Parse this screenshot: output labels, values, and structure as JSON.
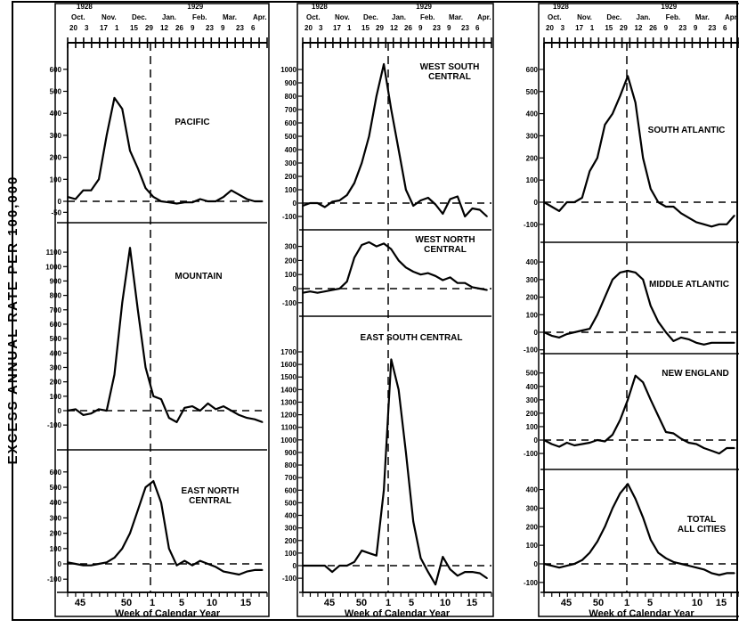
{
  "figure": {
    "ylabel": "EXCESS ANNUAL RATE PER 100,000",
    "xlabel": "Week of Calendar Year",
    "x_tick_labels": [
      "45",
      "50",
      "1",
      "5",
      "10",
      "15"
    ],
    "months_top": [
      "Oct.",
      "Nov.",
      "Dec.",
      "Jan.",
      "Feb.",
      "Mar.",
      "Apr."
    ],
    "days_top": [
      "20",
      "3",
      "17",
      "1",
      "15",
      "29",
      "12",
      "26",
      "9",
      "23",
      "9",
      "23",
      "6"
    ],
    "years_top": [
      "1928",
      "1929"
    ]
  },
  "chart_data": [
    {
      "type": "line",
      "title": "PACIFIC",
      "column": 1,
      "x": [
        42,
        43,
        44,
        45,
        46,
        47,
        48,
        49,
        50,
        51,
        52,
        1,
        2,
        3,
        4,
        5,
        6,
        7,
        8,
        9,
        10,
        11,
        12,
        13,
        14,
        15
      ],
      "y": [
        20,
        10,
        50,
        50,
        100,
        300,
        470,
        420,
        230,
        150,
        60,
        20,
        0,
        -5,
        -10,
        -5,
        -5,
        10,
        0,
        0,
        20,
        50,
        30,
        10,
        0,
        0
      ],
      "yticks": [
        "600",
        "500",
        "400",
        "300",
        "200",
        "100",
        "0",
        "-50"
      ],
      "ylim": [
        -60,
        650
      ]
    },
    {
      "type": "line",
      "title": "MOUNTAIN",
      "column": 1,
      "x": [
        42,
        43,
        44,
        45,
        46,
        47,
        48,
        49,
        50,
        51,
        52,
        1,
        2,
        3,
        4,
        5,
        6,
        7,
        8,
        9,
        10,
        11,
        12,
        13,
        14,
        15
      ],
      "y": [
        0,
        10,
        -30,
        -20,
        10,
        0,
        250,
        750,
        1130,
        700,
        300,
        100,
        80,
        -50,
        -80,
        20,
        30,
        0,
        50,
        10,
        30,
        0,
        -30,
        -50,
        -60,
        -80
      ],
      "yticks": [
        "1100",
        "1000",
        "900",
        "800",
        "700",
        "600",
        "500",
        "400",
        "300",
        "200",
        "100",
        "0",
        "-100"
      ],
      "ylim": [
        -150,
        1200
      ]
    },
    {
      "type": "line",
      "title": "EAST NORTH CENTRAL",
      "column": 1,
      "x": [
        42,
        43,
        44,
        45,
        46,
        47,
        48,
        49,
        50,
        51,
        52,
        1,
        2,
        3,
        4,
        5,
        6,
        7,
        8,
        9,
        10,
        11,
        12,
        13,
        14,
        15
      ],
      "y": [
        10,
        0,
        -10,
        -10,
        0,
        10,
        40,
        100,
        200,
        350,
        500,
        540,
        400,
        100,
        -10,
        20,
        -10,
        20,
        0,
        -20,
        -50,
        -60,
        -70,
        -50,
        -40,
        -40
      ],
      "yticks": [
        "600",
        "500",
        "400",
        "300",
        "200",
        "100",
        "0",
        "-100"
      ],
      "ylim": [
        -150,
        700
      ]
    },
    {
      "type": "line",
      "title": "WEST SOUTH CENTRAL",
      "column": 2,
      "x": [
        42,
        43,
        44,
        45,
        46,
        47,
        48,
        49,
        50,
        51,
        52,
        1,
        2,
        3,
        4,
        5,
        6,
        7,
        8,
        9,
        10,
        11,
        12,
        13,
        14,
        15
      ],
      "y": [
        -20,
        0,
        0,
        -30,
        10,
        20,
        60,
        150,
        300,
        500,
        800,
        1040,
        700,
        400,
        100,
        -20,
        20,
        40,
        -10,
        -80,
        30,
        50,
        -100,
        -40,
        -50,
        -100
      ],
      "yticks": [
        "1000",
        "900",
        "800",
        "700",
        "600",
        "500",
        "400",
        "300",
        "200",
        "100",
        "0",
        "-100"
      ],
      "ylim": [
        -150,
        1100
      ]
    },
    {
      "type": "line",
      "title": "WEST NORTH CENTRAL",
      "column": 2,
      "x": [
        42,
        43,
        44,
        45,
        46,
        47,
        48,
        49,
        50,
        51,
        52,
        1,
        2,
        3,
        4,
        5,
        6,
        7,
        8,
        9,
        10,
        11,
        12,
        13,
        14,
        15
      ],
      "y": [
        -30,
        -20,
        -30,
        -20,
        -10,
        0,
        50,
        220,
        310,
        330,
        300,
        320,
        280,
        200,
        150,
        120,
        100,
        110,
        90,
        60,
        80,
        40,
        40,
        10,
        0,
        -10
      ],
      "yticks": [
        "300",
        "200",
        "100",
        "0",
        "-100"
      ],
      "ylim": [
        -120,
        350
      ]
    },
    {
      "type": "line",
      "title": "EAST SOUTH CENTRAL",
      "column": 2,
      "x": [
        42,
        43,
        44,
        45,
        46,
        47,
        48,
        49,
        50,
        51,
        52,
        1,
        2,
        3,
        4,
        5,
        6,
        7,
        8,
        9,
        10,
        11,
        12,
        13,
        14,
        15
      ],
      "y": [
        0,
        0,
        0,
        0,
        -50,
        0,
        0,
        30,
        120,
        100,
        80,
        600,
        1640,
        1400,
        900,
        350,
        60,
        -50,
        -150,
        70,
        -30,
        -80,
        -50,
        -50,
        -60,
        -100
      ],
      "yticks": [
        "1700",
        "1600",
        "1500",
        "1400",
        "1300",
        "1200",
        "1100",
        "1000",
        "900",
        "800",
        "700",
        "600",
        "500",
        "400",
        "300",
        "200",
        "100",
        "0",
        "-100"
      ],
      "ylim": [
        -130,
        1800
      ]
    },
    {
      "type": "line",
      "title": "SOUTH ATLANTIC",
      "column": 3,
      "x": [
        42,
        43,
        44,
        45,
        46,
        47,
        48,
        49,
        50,
        51,
        52,
        1,
        2,
        3,
        4,
        5,
        6,
        7,
        8,
        9,
        10,
        11,
        12,
        13,
        14,
        15
      ],
      "y": [
        0,
        -20,
        -40,
        0,
        0,
        20,
        140,
        200,
        350,
        400,
        480,
        570,
        450,
        200,
        60,
        0,
        -20,
        -20,
        -50,
        -70,
        -90,
        -100,
        -110,
        -100,
        -100,
        -60
      ],
      "yticks": [
        "600",
        "500",
        "400",
        "300",
        "200",
        "100",
        "0",
        "-100"
      ],
      "ylim": [
        -130,
        650
      ]
    },
    {
      "type": "line",
      "title": "MIDDLE ATLANTIC",
      "column": 3,
      "x": [
        42,
        43,
        44,
        45,
        46,
        47,
        48,
        49,
        50,
        51,
        52,
        1,
        2,
        3,
        4,
        5,
        6,
        7,
        8,
        9,
        10,
        11,
        12,
        13,
        14,
        15
      ],
      "y": [
        0,
        -20,
        -30,
        -10,
        0,
        10,
        20,
        100,
        200,
        300,
        340,
        350,
        340,
        300,
        150,
        60,
        0,
        -50,
        -30,
        -40,
        -60,
        -70,
        -60,
        -60,
        -60,
        -60
      ],
      "yticks": [
        "400",
        "300",
        "200",
        "100",
        "0",
        "-100"
      ],
      "ylim": [
        -120,
        450
      ]
    },
    {
      "type": "line",
      "title": "NEW ENGLAND",
      "column": 3,
      "x": [
        42,
        43,
        44,
        45,
        46,
        47,
        48,
        49,
        50,
        51,
        52,
        1,
        2,
        3,
        4,
        5,
        6,
        7,
        8,
        9,
        10,
        11,
        12,
        13,
        14,
        15
      ],
      "y": [
        0,
        -30,
        -50,
        -20,
        -40,
        -30,
        -20,
        0,
        -10,
        40,
        150,
        300,
        480,
        430,
        300,
        180,
        60,
        50,
        10,
        -20,
        -30,
        -60,
        -80,
        -100,
        -60,
        -60
      ],
      "yticks": [
        "500",
        "400",
        "300",
        "200",
        "100",
        "0",
        "-100"
      ],
      "ylim": [
        -130,
        550
      ]
    },
    {
      "type": "line",
      "title": "TOTAL ALL CITIES",
      "column": 3,
      "x": [
        42,
        43,
        44,
        45,
        46,
        47,
        48,
        49,
        50,
        51,
        52,
        1,
        2,
        3,
        4,
        5,
        6,
        7,
        8,
        9,
        10,
        11,
        12,
        13,
        14,
        15
      ],
      "y": [
        0,
        -10,
        -20,
        -10,
        0,
        20,
        60,
        120,
        200,
        300,
        380,
        430,
        350,
        250,
        130,
        60,
        30,
        10,
        0,
        -10,
        -20,
        -30,
        -50,
        -60,
        -50,
        -50
      ],
      "yticks": [
        "400",
        "300",
        "200",
        "100",
        "0",
        "-100"
      ],
      "ylim": [
        -130,
        450
      ]
    }
  ]
}
